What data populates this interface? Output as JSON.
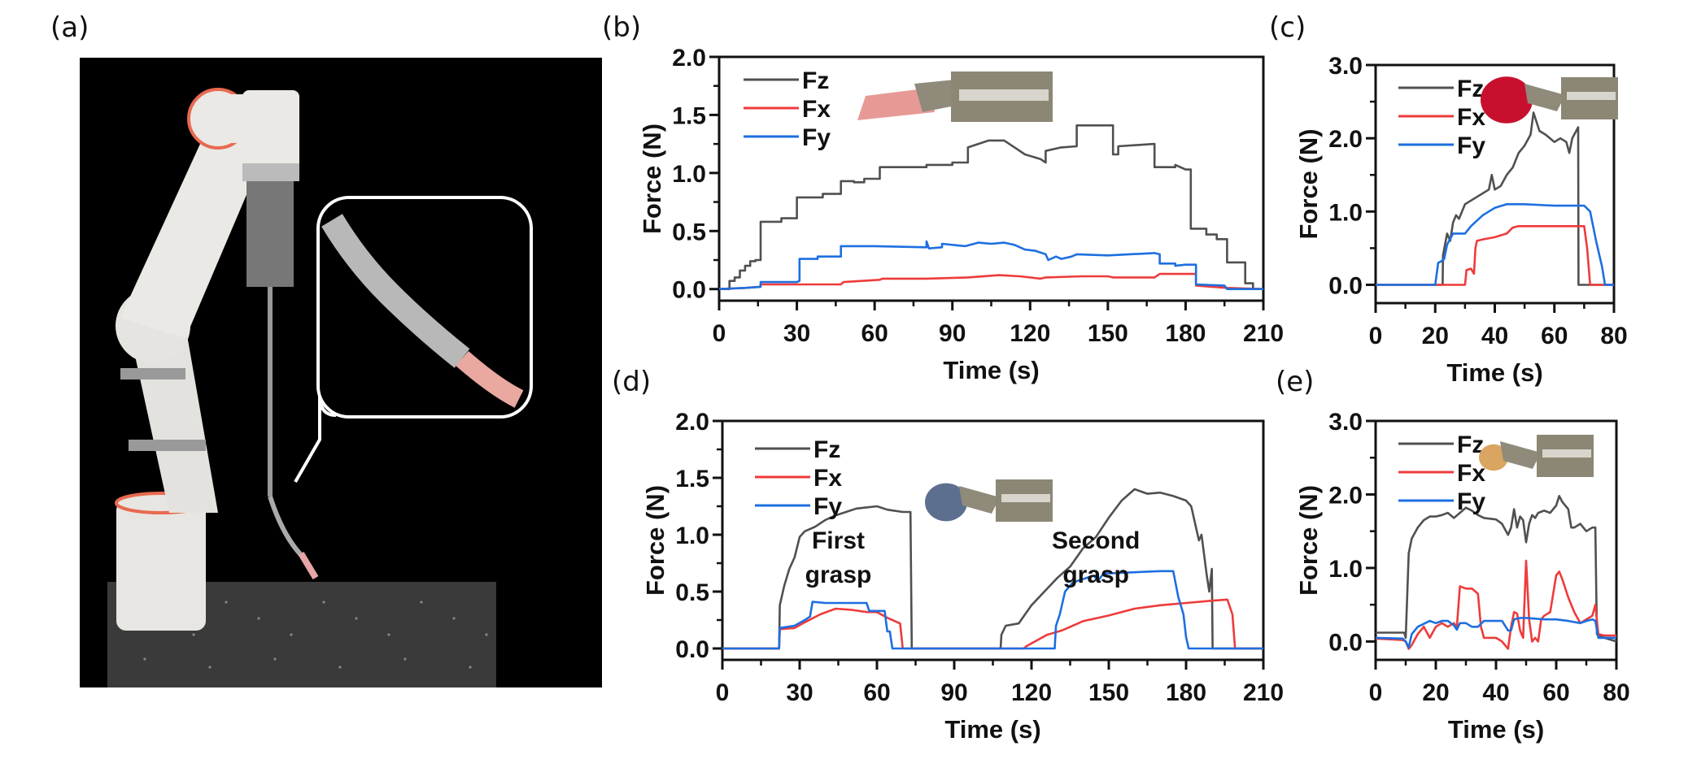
{
  "panel_labels": [
    "(a)",
    "(b)",
    "(c)",
    "(d)",
    "(e)"
  ],
  "colors": {
    "Fz": "#505050",
    "Fx": "#ee3b3b",
    "Fy": "#1d6fe0"
  },
  "photo": {
    "description_icon": "robot-arm-photo"
  },
  "chart_data": [
    {
      "id": "b",
      "type": "line",
      "xlabel": "Time (s)",
      "ylabel": "Force (N)",
      "xlim": [
        0,
        210
      ],
      "ylim": [
        -0.1,
        2.0
      ],
      "xticks": [
        "0",
        "30",
        "60",
        "90",
        "120",
        "150",
        "180",
        "210"
      ],
      "xtick_values": [
        0,
        30,
        60,
        90,
        120,
        150,
        180,
        210
      ],
      "yticks": [
        "0.0",
        "0.5",
        "1.0",
        "1.5",
        "2.0"
      ],
      "ytick_values": [
        0,
        0.5,
        1.0,
        1.5,
        2.0
      ],
      "legend": [
        "Fz",
        "Fx",
        "Fy"
      ],
      "legend_position": "top-left",
      "inset_icon": "gripper-tissue-photo",
      "series": [
        {
          "name": "Fz",
          "x": [
            0,
            4,
            4,
            6,
            6,
            8,
            8,
            10,
            10,
            12,
            12,
            14,
            14,
            16,
            16,
            24,
            24,
            30,
            30,
            40,
            40,
            47,
            47,
            52,
            52,
            56,
            56,
            62,
            62,
            80,
            80,
            90,
            90,
            96,
            96,
            100,
            104,
            110,
            114,
            118,
            124,
            126,
            126,
            132,
            138,
            138,
            152,
            152,
            154,
            154,
            168,
            168,
            176,
            176,
            180,
            182,
            182,
            188,
            188,
            192,
            192,
            196,
            196,
            203,
            203,
            206,
            206,
            210
          ],
          "y": [
            0,
            0,
            0.07,
            0.07,
            0.1,
            0.1,
            0.16,
            0.16,
            0.2,
            0.2,
            0.24,
            0.24,
            0.25,
            0.25,
            0.58,
            0.58,
            0.61,
            0.61,
            0.79,
            0.79,
            0.82,
            0.82,
            0.93,
            0.93,
            0.92,
            0.92,
            0.95,
            0.95,
            1.05,
            1.05,
            1.07,
            1.07,
            1.09,
            1.09,
            1.22,
            1.25,
            1.28,
            1.28,
            1.22,
            1.16,
            1.12,
            1.09,
            1.19,
            1.22,
            1.23,
            1.41,
            1.41,
            1.16,
            1.16,
            1.23,
            1.25,
            1.05,
            1.05,
            1.07,
            1.03,
            1.03,
            0.52,
            0.52,
            0.47,
            0.47,
            0.43,
            0.43,
            0.23,
            0.23,
            0.05,
            0.05,
            0,
            0
          ]
        },
        {
          "name": "Fx",
          "x": [
            0,
            10,
            16,
            16,
            47,
            48,
            62,
            63,
            80,
            96,
            108,
            116,
            124,
            126,
            140,
            150,
            152,
            168,
            170,
            184,
            184,
            196,
            210
          ],
          "y": [
            0,
            0.01,
            0.02,
            0.04,
            0.04,
            0.06,
            0.08,
            0.09,
            0.09,
            0.1,
            0.12,
            0.11,
            0.09,
            0.1,
            0.11,
            0.11,
            0.1,
            0.1,
            0.13,
            0.13,
            0.03,
            0.01,
            0
          ]
        },
        {
          "name": "Fy",
          "x": [
            0,
            10,
            16,
            16,
            30,
            31,
            31,
            38,
            38,
            47,
            47,
            60,
            80,
            80,
            81,
            86,
            86,
            95,
            100,
            105,
            110,
            114,
            118,
            122,
            126,
            127,
            130,
            132,
            136,
            138,
            150,
            168,
            170,
            170,
            176,
            176,
            180,
            184,
            184,
            195,
            196,
            210
          ],
          "y": [
            0,
            0.01,
            0.02,
            0.06,
            0.06,
            0.07,
            0.26,
            0.26,
            0.28,
            0.28,
            0.37,
            0.37,
            0.36,
            0.41,
            0.35,
            0.36,
            0.39,
            0.37,
            0.4,
            0.39,
            0.4,
            0.38,
            0.34,
            0.33,
            0.3,
            0.25,
            0.28,
            0.26,
            0.28,
            0.3,
            0.29,
            0.31,
            0.3,
            0.22,
            0.22,
            0.2,
            0.21,
            0.21,
            0.04,
            0.03,
            0,
            0
          ]
        }
      ]
    },
    {
      "id": "c",
      "type": "line",
      "xlabel": "Time (s)",
      "ylabel": "Force (N)",
      "xlim": [
        0,
        80
      ],
      "ylim": [
        -0.25,
        3.0
      ],
      "xticks": [
        "0",
        "20",
        "40",
        "60",
        "80"
      ],
      "xtick_values": [
        0,
        20,
        40,
        60,
        80
      ],
      "yticks": [
        "0.0",
        "1.0",
        "2.0",
        "3.0"
      ],
      "ytick_values": [
        0,
        1.0,
        2.0,
        3.0
      ],
      "legend": [
        "Fz",
        "Fx",
        "Fy"
      ],
      "legend_position": "top-left",
      "inset_icon": "gripper-red-object-photo",
      "series": [
        {
          "name": "Fz",
          "x": [
            0,
            22.5,
            22.6,
            24,
            25,
            26,
            27,
            28,
            30,
            32,
            34,
            36,
            38,
            39,
            40,
            42,
            44,
            46,
            48,
            50,
            52,
            53,
            55,
            57,
            60,
            62,
            64,
            65,
            66,
            68,
            68.1,
            80
          ],
          "y": [
            0,
            0,
            0.4,
            0.7,
            0.6,
            0.85,
            0.95,
            0.9,
            1.1,
            1.15,
            1.2,
            1.25,
            1.3,
            1.5,
            1.3,
            1.35,
            1.5,
            1.6,
            1.8,
            1.9,
            2.05,
            2.35,
            2.1,
            2.05,
            1.95,
            2.0,
            1.95,
            1.8,
            2.0,
            2.15,
            0,
            0
          ]
        },
        {
          "name": "Fx",
          "x": [
            0,
            30,
            30.5,
            32,
            33,
            33.5,
            34,
            36,
            40,
            44,
            46,
            48,
            50,
            60,
            70,
            71,
            72,
            80
          ],
          "y": [
            0,
            0,
            0.2,
            0.22,
            0.15,
            0.5,
            0.6,
            0.62,
            0.65,
            0.7,
            0.78,
            0.8,
            0.8,
            0.8,
            0.8,
            0.5,
            0,
            0
          ]
        },
        {
          "name": "Fy",
          "x": [
            0,
            20,
            21,
            22,
            23,
            24,
            26,
            30,
            32,
            36,
            40,
            44,
            50,
            60,
            70,
            72,
            74,
            76,
            77,
            80
          ],
          "y": [
            0,
            0,
            0.3,
            0.32,
            0.35,
            0.55,
            0.7,
            0.7,
            0.8,
            0.95,
            1.05,
            1.1,
            1.1,
            1.08,
            1.08,
            1.0,
            0.6,
            0.25,
            0,
            0
          ]
        }
      ]
    },
    {
      "id": "d",
      "type": "line",
      "xlabel": "Time (s)",
      "ylabel": "Force (N)",
      "xlim": [
        0,
        210
      ],
      "ylim": [
        -0.1,
        2.0
      ],
      "xticks": [
        "0",
        "30",
        "60",
        "90",
        "120",
        "150",
        "180",
        "210"
      ],
      "xtick_values": [
        0,
        30,
        60,
        90,
        120,
        150,
        180,
        210
      ],
      "yticks": [
        "0.0",
        "0.5",
        "1.0",
        "1.5",
        "2.0"
      ],
      "ytick_values": [
        0,
        0.5,
        1.0,
        1.5,
        2.0
      ],
      "legend": [
        "Fz",
        "Fx",
        "Fy"
      ],
      "legend_position": "top-left",
      "inset_icon": "gripper-blue-object-photo",
      "annotations": [
        "First\ngrasp",
        "Second\ngrasp"
      ],
      "annotation_lines": [
        [
          "First",
          "grasp"
        ],
        [
          "Second",
          "grasp"
        ]
      ],
      "annotation_positions_data": [
        [
          45,
          0.88
        ],
        [
          145,
          0.88
        ]
      ],
      "series": [
        {
          "name": "Fz",
          "x": [
            0,
            22,
            22.3,
            24,
            26,
            28,
            30,
            32,
            36,
            40,
            44,
            48,
            52,
            56,
            60,
            64,
            70,
            73,
            73.5,
            108,
            108.3,
            110,
            115,
            120,
            125,
            130,
            135,
            140,
            145,
            150,
            155,
            160,
            165,
            170,
            175,
            180,
            182,
            185,
            186,
            188,
            189,
            190,
            190.3,
            210
          ],
          "y": [
            0,
            0,
            0.38,
            0.55,
            0.7,
            0.8,
            0.98,
            1.03,
            1.07,
            1.13,
            1.17,
            1.2,
            1.23,
            1.24,
            1.25,
            1.22,
            1.2,
            1.2,
            0,
            0,
            0.12,
            0.2,
            0.22,
            0.38,
            0.5,
            0.62,
            0.72,
            0.88,
            0.98,
            1.15,
            1.3,
            1.4,
            1.36,
            1.37,
            1.34,
            1.3,
            1.25,
            0.95,
            1.0,
            0.65,
            0.5,
            0.7,
            0,
            0
          ]
        },
        {
          "name": "Fx",
          "x": [
            0,
            22,
            22.3,
            28,
            32,
            38,
            44,
            50,
            56,
            60,
            64,
            67,
            69,
            70,
            117,
            118,
            122,
            126,
            132,
            140,
            150,
            160,
            170,
            180,
            190,
            196,
            198,
            199,
            210
          ],
          "y": [
            0,
            0,
            0.17,
            0.18,
            0.23,
            0.3,
            0.35,
            0.34,
            0.32,
            0.32,
            0.27,
            0.24,
            0.22,
            0,
            0,
            0.02,
            0.07,
            0.12,
            0.16,
            0.24,
            0.29,
            0.35,
            0.38,
            0.4,
            0.42,
            0.43,
            0.3,
            0,
            0
          ]
        },
        {
          "name": "Fy",
          "x": [
            0,
            22,
            22.3,
            28,
            32,
            34,
            35,
            40,
            50,
            56,
            57,
            60,
            63,
            64,
            65,
            66,
            129,
            129.5,
            131,
            133,
            136,
            140,
            144,
            146,
            148,
            150,
            160,
            170,
            175,
            177,
            179,
            180,
            181,
            210
          ],
          "y": [
            0,
            0,
            0.18,
            0.2,
            0.25,
            0.28,
            0.41,
            0.4,
            0.4,
            0.4,
            0.33,
            0.33,
            0.33,
            0.15,
            0.15,
            0,
            0,
            0.2,
            0.3,
            0.5,
            0.58,
            0.61,
            0.64,
            0.6,
            0.66,
            0.66,
            0.67,
            0.68,
            0.68,
            0.45,
            0.3,
            0.1,
            0,
            0
          ]
        }
      ]
    },
    {
      "id": "e",
      "type": "line",
      "xlabel": "Time (s)",
      "ylabel": "Force (N)",
      "xlim": [
        0,
        80
      ],
      "ylim": [
        -0.25,
        3.0
      ],
      "xticks": [
        "0",
        "20",
        "40",
        "60",
        "80"
      ],
      "xtick_values": [
        0,
        20,
        40,
        60,
        80
      ],
      "yticks": [
        "0.0",
        "1.0",
        "2.0",
        "3.0"
      ],
      "ytick_values": [
        0,
        1.0,
        2.0,
        3.0
      ],
      "legend": [
        "Fz",
        "Fx",
        "Fy"
      ],
      "legend_position": "top-left",
      "inset_icon": "gripper-nut-object-photo",
      "series": [
        {
          "name": "Fz",
          "x": [
            0,
            9.5,
            10,
            11,
            12,
            14,
            16,
            18,
            20,
            22,
            24,
            26,
            28,
            30,
            32,
            34,
            36,
            40,
            42,
            44,
            45,
            46,
            47,
            48,
            49,
            50,
            51,
            52,
            53,
            54,
            56,
            58,
            60,
            61,
            62,
            64,
            65,
            66,
            68,
            70,
            72,
            73,
            73.5,
            74,
            76,
            80
          ],
          "y": [
            0.12,
            0.12,
            0.05,
            1.2,
            1.4,
            1.55,
            1.65,
            1.7,
            1.7,
            1.72,
            1.75,
            1.68,
            1.75,
            1.82,
            1.78,
            1.72,
            1.68,
            1.66,
            1.6,
            1.45,
            1.55,
            1.8,
            1.55,
            1.7,
            1.65,
            1.35,
            1.6,
            1.72,
            1.68,
            1.75,
            1.78,
            1.75,
            1.85,
            1.98,
            1.9,
            1.8,
            1.55,
            1.55,
            1.6,
            1.5,
            1.55,
            1.55,
            0.1,
            0.08,
            0.05,
            0
          ]
        },
        {
          "name": "Fx",
          "x": [
            0,
            9,
            10,
            11,
            12,
            14,
            16,
            18,
            20,
            22,
            24,
            26,
            27,
            28,
            30,
            32,
            34,
            35,
            36,
            38,
            40,
            42,
            43,
            44,
            45,
            46,
            47,
            48,
            49,
            50,
            51,
            52,
            53,
            54,
            55,
            56,
            58,
            60,
            61,
            62,
            64,
            66,
            68,
            70,
            72,
            73,
            74,
            76,
            80
          ],
          "y": [
            0.04,
            0.02,
            0,
            -0.1,
            -0.05,
            0.1,
            0.2,
            0.05,
            0.2,
            0.25,
            0.2,
            0.25,
            0.2,
            0.75,
            0.72,
            0.72,
            0.65,
            0.2,
            0.05,
            0.05,
            0.05,
            0,
            -0.05,
            -0.1,
            0.2,
            0.4,
            0.38,
            0.15,
            0.05,
            1.1,
            0.3,
            0.0,
            0.05,
            0.0,
            0.3,
            0.35,
            0.4,
            0.9,
            0.95,
            0.85,
            0.6,
            0.4,
            0.25,
            0.3,
            0.35,
            0.5,
            0.1,
            0.08,
            0.08
          ]
        },
        {
          "name": "Fy",
          "x": [
            0,
            9,
            10,
            11,
            12,
            14,
            18,
            20,
            22,
            24,
            26,
            27,
            28,
            30,
            32,
            34,
            36,
            40,
            42,
            44,
            45,
            46,
            48,
            50,
            56,
            60,
            64,
            68,
            70,
            72,
            73,
            74,
            76,
            80
          ],
          "y": [
            0.05,
            0.04,
            0,
            -0.08,
            0.1,
            0.2,
            0.28,
            0.25,
            0.28,
            0.28,
            0.22,
            0.16,
            0.25,
            0.25,
            0.2,
            0.2,
            0.28,
            0.28,
            0.28,
            0.15,
            0.15,
            0.3,
            0.32,
            0.32,
            0.3,
            0.3,
            0.28,
            0.25,
            0.28,
            0.3,
            0.28,
            0.05,
            0.05,
            0.05
          ]
        }
      ]
    }
  ]
}
